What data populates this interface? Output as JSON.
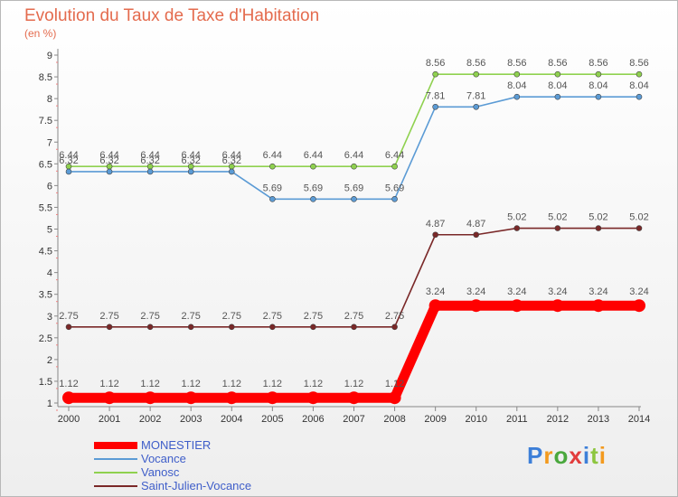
{
  "title": "Evolution du Taux de Taxe d'Habitation",
  "unit": "(en %)",
  "brand": "Proxiti",
  "chart_data": {
    "type": "line",
    "title": "Evolution du Taux de Taxe d'Habitation",
    "ylabel": "(en %)",
    "x": [
      "2000",
      "2001",
      "2002",
      "2003",
      "2004",
      "2005",
      "2006",
      "2007",
      "2008",
      "2009",
      "2010",
      "2011",
      "2012",
      "2013",
      "2014"
    ],
    "ylim": [
      1,
      9
    ],
    "yticks": [
      "1",
      "1.5",
      "2",
      "2.5",
      "3",
      "3.5",
      "4",
      "4.5",
      "5",
      "5.5",
      "6",
      "6.5",
      "7",
      "7.5",
      "8",
      "8.5",
      "9"
    ],
    "grid": false,
    "legend": "bottom-left",
    "series": [
      {
        "name": "MONESTIER",
        "color": "#ff0000",
        "values": [
          1.12,
          1.12,
          1.12,
          1.12,
          1.12,
          1.12,
          1.12,
          1.12,
          1.12,
          3.24,
          3.24,
          3.24,
          3.24,
          3.24,
          3.24
        ],
        "labels": [
          "1.12",
          "1.12",
          "1.12",
          "1.12",
          "1.12",
          "1.12",
          "1.12",
          "1.12",
          "1.12",
          "3.24",
          "3.24",
          "3.24",
          "3.24",
          "3.24",
          "3.24"
        ]
      },
      {
        "name": "Vocance",
        "color": "#5b9bd5",
        "values": [
          6.32,
          6.32,
          6.32,
          6.32,
          6.32,
          5.69,
          5.69,
          5.69,
          5.69,
          7.81,
          7.81,
          8.04,
          8.04,
          8.04,
          8.04
        ],
        "labels": [
          "6.32",
          "6.32",
          "6.32",
          "6.32",
          "6.32",
          "5.69",
          "5.69",
          "5.69",
          "5.69",
          "7.81",
          "7.81",
          "8.04",
          "8.04",
          "8.04",
          "8.04"
        ]
      },
      {
        "name": "Vanosc",
        "color": "#8fd14f",
        "values": [
          6.44,
          6.44,
          6.44,
          6.44,
          6.44,
          6.44,
          6.44,
          6.44,
          6.44,
          8.56,
          8.56,
          8.56,
          8.56,
          8.56,
          8.56
        ],
        "labels": [
          "6.44",
          "6.44",
          "6.44",
          "6.44",
          "6.44",
          "6.44",
          "6.44",
          "6.44",
          "6.44",
          "8.56",
          "8.56",
          "8.56",
          "8.56",
          "8.56",
          "8.56"
        ]
      },
      {
        "name": "Saint-Julien-Vocance",
        "color": "#7a2828",
        "values": [
          2.75,
          2.75,
          2.75,
          2.75,
          2.75,
          2.75,
          2.75,
          2.75,
          2.75,
          4.87,
          4.87,
          5.02,
          5.02,
          5.02,
          5.02
        ],
        "labels": [
          "2.75",
          "2.75",
          "2.75",
          "2.75",
          "2.75",
          "2.75",
          "2.75",
          "2.75",
          "2.75",
          "4.87",
          "4.87",
          "5.02",
          "5.02",
          "5.02",
          "5.02"
        ]
      }
    ]
  }
}
